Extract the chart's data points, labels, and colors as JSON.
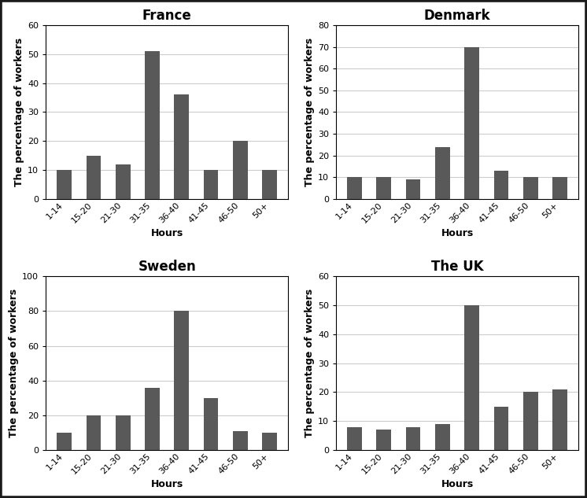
{
  "categories": [
    "1-14",
    "15-20",
    "21-30",
    "31-35",
    "36-40",
    "41-45",
    "46-50",
    "50+"
  ],
  "france": {
    "title": "France",
    "values": [
      10,
      15,
      12,
      51,
      36,
      10,
      20,
      10
    ],
    "ylim": [
      0,
      60
    ],
    "yticks": [
      0,
      10,
      20,
      30,
      40,
      50,
      60
    ]
  },
  "denmark": {
    "title": "Denmark",
    "values": [
      10,
      10,
      9,
      24,
      70,
      13,
      10,
      10
    ],
    "ylim": [
      0,
      80
    ],
    "yticks": [
      0,
      10,
      20,
      30,
      40,
      50,
      60,
      70,
      80
    ]
  },
  "sweden": {
    "title": "Sweden",
    "values": [
      10,
      20,
      20,
      36,
      80,
      30,
      11,
      10
    ],
    "ylim": [
      0,
      100
    ],
    "yticks": [
      0,
      20,
      40,
      60,
      80,
      100
    ]
  },
  "uk": {
    "title": "The UK",
    "values": [
      8,
      7,
      8,
      9,
      50,
      15,
      20,
      21
    ],
    "ylim": [
      0,
      60
    ],
    "yticks": [
      0,
      10,
      20,
      30,
      40,
      50,
      60
    ]
  },
  "bar_color": "#595959",
  "ylabel": "The percentage of workers",
  "xlabel": "Hours",
  "title_fontsize": 12,
  "label_fontsize": 9,
  "tick_fontsize": 8,
  "figure_facecolor": "#ffffff",
  "axes_facecolor": "#ffffff",
  "grid_color": "#cccccc",
  "outer_border_color": "#1a1a1a"
}
